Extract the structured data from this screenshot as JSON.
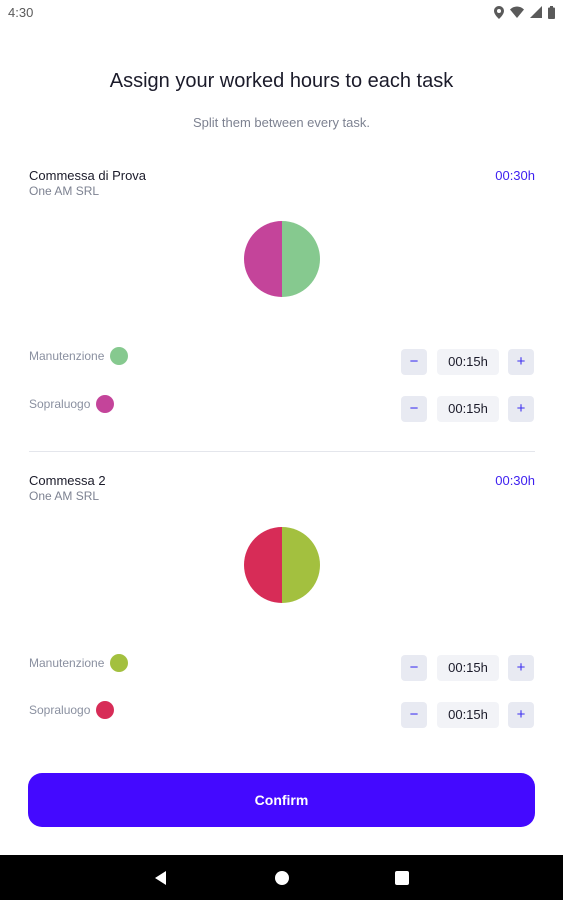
{
  "status": {
    "time": "4:30",
    "icons": [
      "location-icon",
      "wifi-icon",
      "signal-icon",
      "battery-icon"
    ]
  },
  "header": {
    "title": "Assign your worked hours to each task",
    "subtitle": "Split them between every task."
  },
  "jobs": [
    {
      "name": "Commessa di Prova",
      "client": "One AM SRL",
      "total": "00:30h",
      "tasks": [
        {
          "label": "Manutenzione",
          "time": "00:15h",
          "color": "#86c98f",
          "share": 0.5
        },
        {
          "label": "Sopraluogo",
          "time": "00:15h",
          "color": "#c4449a",
          "share": 0.5
        }
      ]
    },
    {
      "name": "Commessa 2",
      "client": "One AM SRL",
      "total": "00:30h",
      "tasks": [
        {
          "label": "Manutenzione",
          "time": "00:15h",
          "color": "#a3c03f",
          "share": 0.5
        },
        {
          "label": "Sopraluogo",
          "time": "00:15h",
          "color": "#d72c57",
          "share": 0.5
        }
      ]
    }
  ],
  "stepper": {
    "minus": "−",
    "plus": "+"
  },
  "footer": {
    "confirm_label": "Confirm"
  },
  "colors": {
    "accent": "#4409ff",
    "total_text": "#3d1ff0"
  }
}
